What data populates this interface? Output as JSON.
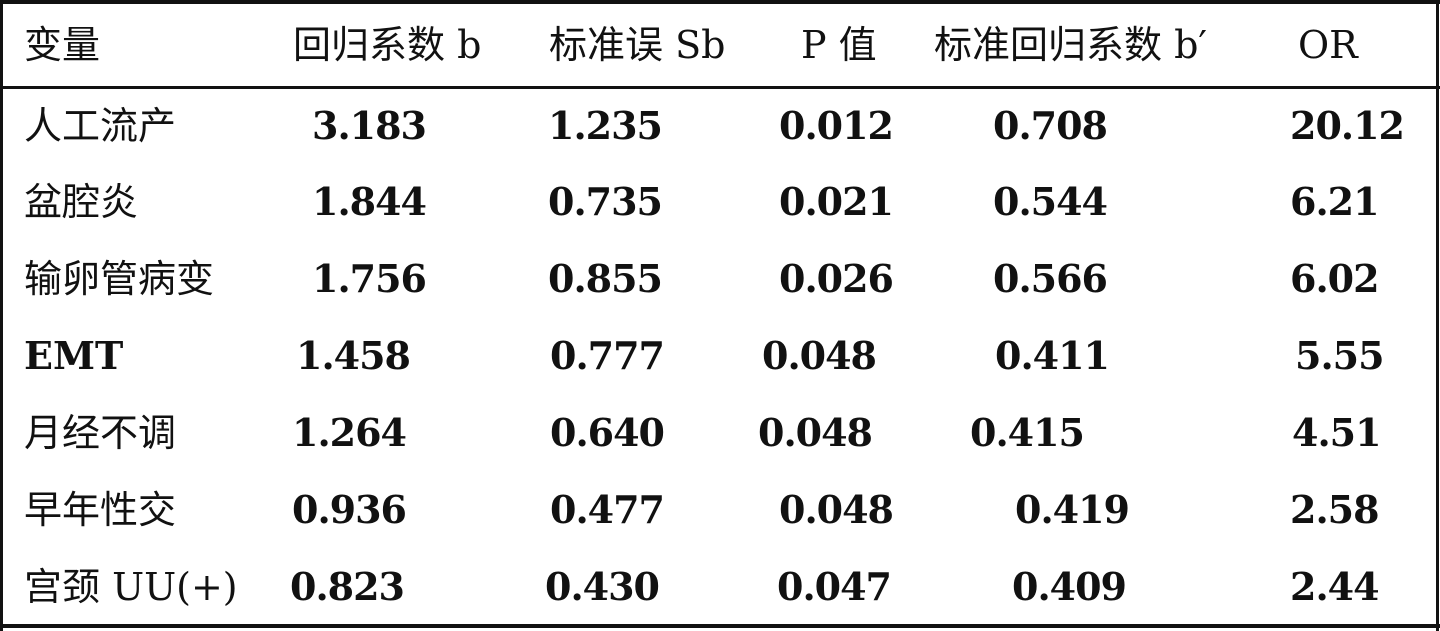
{
  "table": {
    "headers": [
      "变量",
      "回归系数 b",
      "标准误 Sb",
      "P 值",
      "标准回归系数 b′",
      "OR"
    ],
    "rows": [
      {
        "variable": "人工流产",
        "b": "3.183",
        "sb": "1.235",
        "p": "0.012",
        "b_std": "0.708",
        "or": "20.12"
      },
      {
        "variable": "盆腔炎",
        "b": "1.844",
        "sb": "0.735",
        "p": "0.021",
        "b_std": "0.544",
        "or": "6.21"
      },
      {
        "variable": "输卵管病变",
        "b": "1.756",
        "sb": "0.855",
        "p": "0.026",
        "b_std": "0.566",
        "or": "6.02"
      },
      {
        "variable": "EMT",
        "b": "1.458",
        "sb": "0.777",
        "p": "0.048",
        "b_std": "0.411",
        "or": "5.55"
      },
      {
        "variable": "月经不调",
        "b": "1.264",
        "sb": "0.640",
        "p": "0.048",
        "b_std": "0.415",
        "or": "4.51"
      },
      {
        "variable": "早年性交",
        "b": "0.936",
        "sb": "0.477",
        "p": "0.048",
        "b_std": "0.419",
        "or": "2.58"
      },
      {
        "variable": "宫颈 UU(+)",
        "b": "0.823",
        "sb": "0.430",
        "p": "0.047",
        "b_std": "0.409",
        "or": "2.44"
      }
    ]
  }
}
